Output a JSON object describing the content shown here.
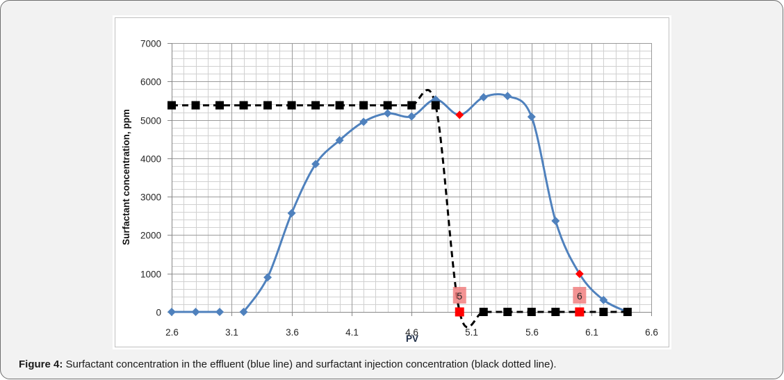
{
  "figure": {
    "caption_label": "Figure 4:",
    "caption_text": " Surfactant concentration in the effluent (blue line) and surfactant injection concentration (black dotted line)."
  },
  "chart_data": {
    "type": "line",
    "title": "",
    "xlabel": "PV",
    "ylabel": "Surfactant concentration, ppm",
    "xlim": [
      2.6,
      6.6
    ],
    "ylim": [
      0,
      7000
    ],
    "xticks": [
      "2.6",
      "3.1",
      "3.6",
      "4.1",
      "4.6",
      "5.1",
      "5.6",
      "6.1",
      "6.6"
    ],
    "yticks": [
      "0",
      "1000",
      "2000",
      "3000",
      "4000",
      "5000",
      "6000",
      "7000"
    ],
    "grid": true,
    "grid_minor_x": 0.1,
    "grid_minor_y": 200,
    "legend": "none",
    "colors": {
      "effluent": "#4f81bd",
      "injection": "#000000",
      "highlight": "#ff0000",
      "label_box": "#f07878"
    },
    "series": [
      {
        "name": "Surfactant concentration in the effluent (blue line)",
        "key": "effluent",
        "line": "solid-smoothed",
        "marker": "diamond",
        "x": [
          2.6,
          2.8,
          3.0,
          3.2,
          3.4,
          3.6,
          3.8,
          4.0,
          4.2,
          4.4,
          4.6,
          4.8,
          5.0,
          5.2,
          5.4,
          5.6,
          5.8,
          6.0,
          6.2,
          6.4
        ],
        "y": [
          0,
          0,
          0,
          0,
          900,
          2570,
          3850,
          4470,
          4950,
          5170,
          5090,
          5530,
          5130,
          5590,
          5620,
          5080,
          2370,
          990,
          310,
          0
        ],
        "segments": [
          [
            0,
            2
          ],
          [
            3,
            19
          ]
        ],
        "highlight_indices": [
          12,
          17
        ]
      },
      {
        "name": "Surfactant injection concentration (black dotted line)",
        "key": "injection",
        "line": "dashed-smoothed",
        "marker": "square",
        "x": [
          2.6,
          2.8,
          3.0,
          3.2,
          3.4,
          3.6,
          3.8,
          4.0,
          4.2,
          4.4,
          4.6,
          4.8,
          5.0,
          5.2,
          5.4,
          5.6,
          5.8,
          6.0,
          6.2,
          6.4
        ],
        "y": [
          5380,
          5380,
          5380,
          5380,
          5380,
          5380,
          5380,
          5380,
          5380,
          5380,
          5380,
          5380,
          0,
          0,
          0,
          0,
          0,
          0,
          0,
          0
        ],
        "segments": [
          [
            0,
            19
          ]
        ],
        "highlight_indices": [
          12,
          17
        ]
      }
    ],
    "data_labels": [
      {
        "series": 1,
        "index": 12,
        "x": 5.0,
        "text": "5"
      },
      {
        "series": 1,
        "index": 17,
        "x": 6.0,
        "text": "6"
      }
    ]
  }
}
